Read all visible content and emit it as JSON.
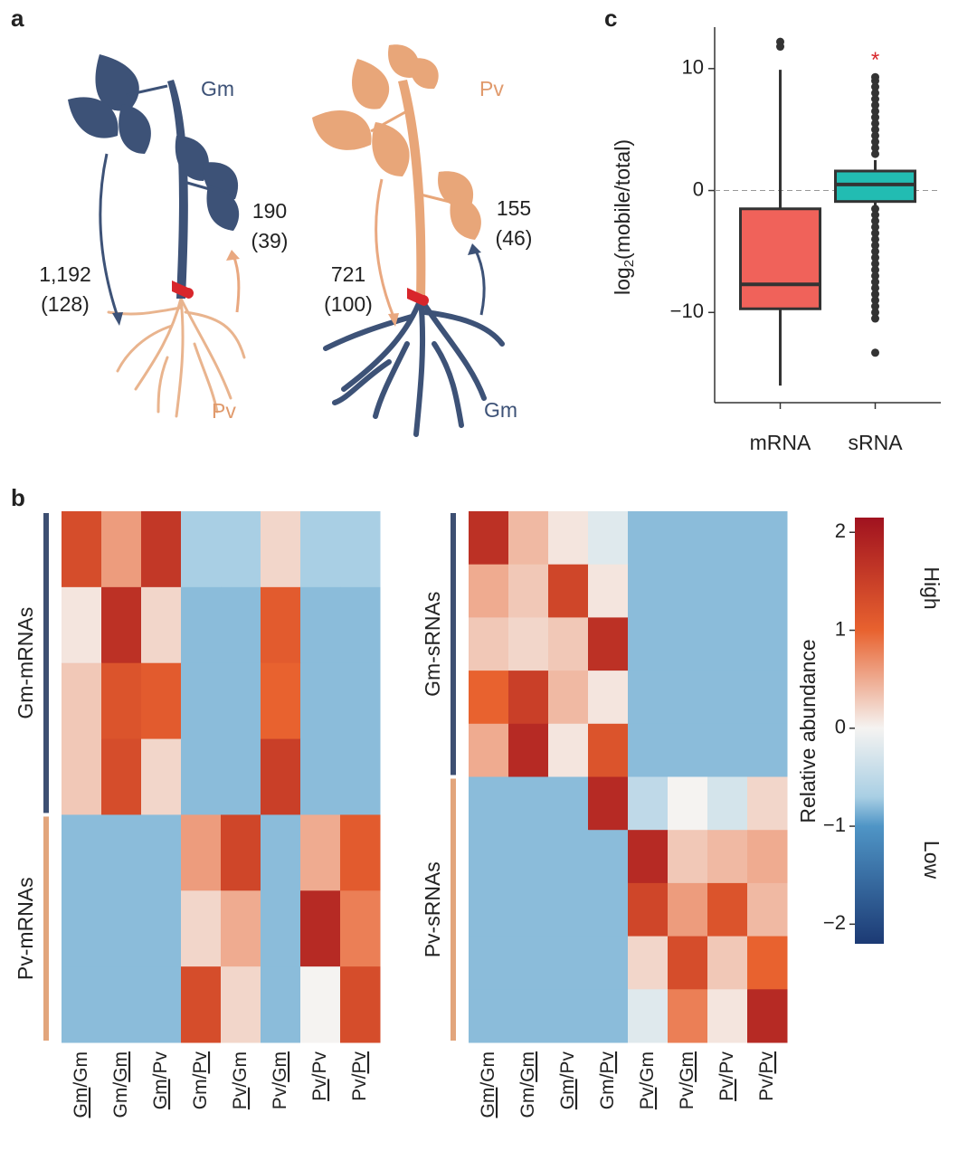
{
  "panel_labels": [
    "a",
    "b",
    "c"
  ],
  "diagram": {
    "left_shoot": "Gm",
    "left_root": "Pv",
    "right_shoot": "Pv",
    "right_root": "Gm",
    "left_down": [
      "1,192",
      "(128)"
    ],
    "left_up": [
      "190",
      "(39)"
    ],
    "right_down": [
      "721",
      "(100)"
    ],
    "right_up": [
      "155",
      "(46)"
    ]
  },
  "chart_data": [
    {
      "type": "box",
      "ylabel": {
        "base": "log",
        "sub": "2",
        "rest": "(mobile/total)"
      },
      "categories": [
        "mRNA",
        "sRNA"
      ],
      "colors": [
        "#f0625a",
        "#22bcb2"
      ],
      "boxes": [
        {
          "whislo": -16,
          "q1": -9.7,
          "med": -7.7,
          "q3": -1.5,
          "whishi": 9.9,
          "fliers": [
            12.2,
            11.8
          ]
        },
        {
          "whislo": -1.2,
          "q1": -0.9,
          "med": 0.5,
          "q3": 1.6,
          "whishi": 2.5,
          "fliers": [
            3,
            3.5,
            4,
            4.5,
            5,
            5.5,
            6,
            6.5,
            7,
            7.5,
            8,
            8.5,
            9,
            9.3,
            -1.5,
            -2,
            -2.5,
            -3,
            -3.5,
            -4,
            -4.5,
            -5,
            -5.5,
            -6,
            -6.5,
            -7,
            -7.5,
            -8,
            -8.5,
            -9,
            -9.5,
            -10,
            -10.5,
            -13.3
          ]
        }
      ],
      "ylim": [
        -17.4,
        13.4
      ],
      "yticks": [
        {
          "value": -10,
          "label": "−10"
        },
        0,
        10
      ],
      "hline": 0,
      "annotations": [
        {
          "text": "*",
          "category": 1,
          "y": 10.6,
          "color": "#d7262b"
        }
      ]
    },
    {
      "type": "heatmap",
      "columns": [
        [
          "Gm",
          "/",
          "Gm"
        ],
        [
          "Gm",
          "/",
          "Gm"
        ],
        [
          "Gm",
          "/",
          "Pv"
        ],
        [
          "Gm",
          "/",
          "Pv"
        ],
        [
          "Pv",
          "/",
          "Gm"
        ],
        [
          "Pv",
          "/",
          "Gm"
        ],
        [
          "Pv",
          "/",
          "Pv"
        ],
        [
          "Pv",
          "/",
          "Pv"
        ]
      ],
      "underline": [
        0,
        2,
        0,
        2,
        0,
        2,
        0,
        2
      ],
      "groups": [
        {
          "name": "Gm-mRNAs",
          "color": "#3d4f72",
          "values": [
            [
              1.3,
              0.6,
              1.6,
              -0.7,
              -0.7,
              0.2,
              -0.7,
              -0.7
            ],
            [
              0.1,
              1.7,
              0.2,
              -0.8,
              -0.8,
              1.1,
              -0.8,
              -0.8
            ],
            [
              0.3,
              1.2,
              1.1,
              -0.8,
              -0.8,
              1.0,
              -0.8,
              -0.8
            ],
            [
              0.3,
              1.3,
              0.2,
              -0.8,
              -0.8,
              1.5,
              -0.8,
              -0.8
            ]
          ]
        },
        {
          "name": "Pv-mRNAs",
          "color": "#e2a57c",
          "values": [
            [
              -0.8,
              -0.8,
              -0.8,
              0.6,
              1.4,
              -0.8,
              0.5,
              1.1
            ],
            [
              -0.8,
              -0.8,
              -0.8,
              0.2,
              0.5,
              -0.8,
              1.8,
              0.8
            ],
            [
              -0.8,
              -0.8,
              -0.8,
              1.3,
              0.2,
              -0.8,
              0.0,
              1.3
            ]
          ]
        }
      ]
    },
    {
      "type": "heatmap",
      "columns": [
        [
          "Gm",
          "/",
          "Gm"
        ],
        [
          "Gm",
          "/",
          "Gm"
        ],
        [
          "Gm",
          "/",
          "Pv"
        ],
        [
          "Gm",
          "/",
          "Pv"
        ],
        [
          "Pv",
          "/",
          "Gm"
        ],
        [
          "Pv",
          "/",
          "Gm"
        ],
        [
          "Pv",
          "/",
          "Pv"
        ],
        [
          "Pv",
          "/",
          "Pv"
        ]
      ],
      "underline": [
        0,
        2,
        0,
        2,
        0,
        2,
        0,
        2
      ],
      "groups": [
        {
          "name": "Gm-sRNAs",
          "color": "#3d4f72",
          "values": [
            [
              1.7,
              0.4,
              0.1,
              -0.2,
              -0.8,
              -0.8,
              -0.8,
              -0.8
            ],
            [
              0.5,
              0.3,
              1.4,
              0.1,
              -0.8,
              -0.8,
              -0.8,
              -0.8
            ],
            [
              0.3,
              0.2,
              0.3,
              1.7,
              -0.8,
              -0.8,
              -0.8,
              -0.8
            ],
            [
              1.0,
              1.5,
              0.4,
              0.1,
              -0.8,
              -0.8,
              -0.8,
              -0.8
            ],
            [
              0.5,
              1.8,
              0.1,
              1.2,
              -0.8,
              -0.8,
              -0.8,
              -0.8
            ]
          ]
        },
        {
          "name": "Pv-sRNAs",
          "color": "#e2a57c",
          "values": [
            [
              -0.8,
              -0.8,
              -0.8,
              1.8,
              -0.5,
              0.0,
              -0.3,
              0.2
            ],
            [
              -0.8,
              -0.8,
              -0.8,
              -0.8,
              1.8,
              0.3,
              0.4,
              0.5
            ],
            [
              -0.8,
              -0.8,
              -0.8,
              -0.8,
              1.4,
              0.6,
              1.2,
              0.4
            ],
            [
              -0.8,
              -0.8,
              -0.8,
              -0.8,
              0.2,
              1.3,
              0.3,
              1.0
            ],
            [
              -0.8,
              -0.8,
              -0.8,
              -0.8,
              -0.2,
              0.8,
              0.1,
              1.8
            ]
          ]
        }
      ]
    }
  ],
  "colorbar": {
    "label": "Relative abundance",
    "high": "High",
    "low": "Low",
    "clim": [
      -2.2,
      2.15
    ],
    "ticks": [
      {
        "value": -2,
        "label": "−2"
      },
      {
        "value": -1,
        "label": "−1"
      },
      0,
      1,
      2
    ],
    "colorscale": [
      [
        -2.2,
        "#1c3a74"
      ],
      [
        -1,
        "#4f95c6"
      ],
      [
        -0.7,
        "#a9cfe4"
      ],
      [
        0,
        "#f5f3f1"
      ],
      [
        1,
        "#e8622f"
      ],
      [
        2.15,
        "#a0121f"
      ]
    ]
  }
}
